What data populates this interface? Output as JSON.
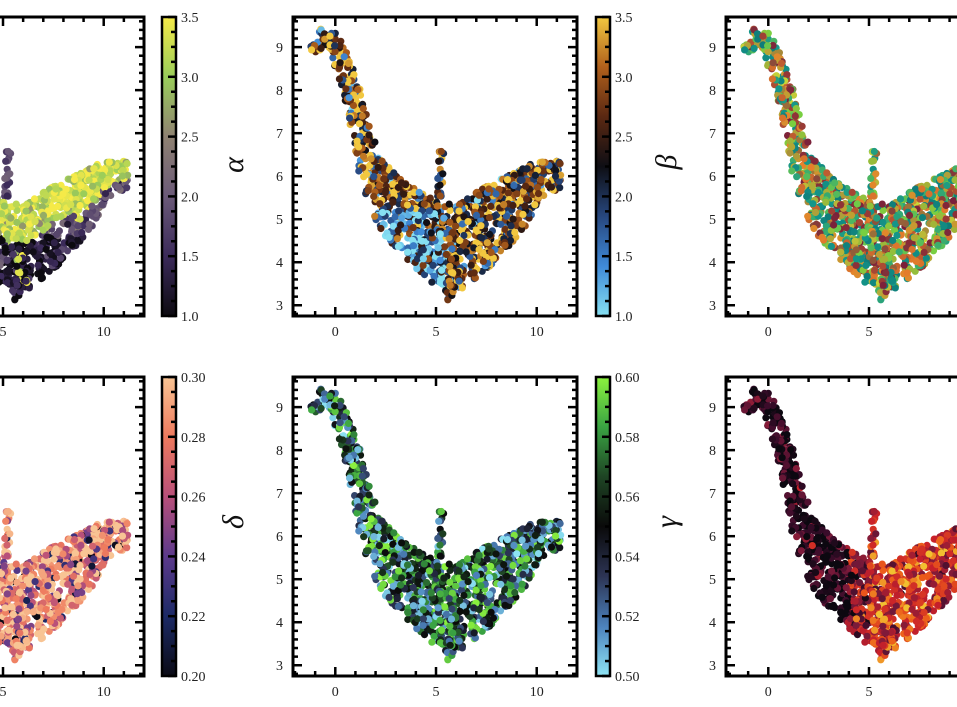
{
  "chart_data": [
    {
      "type": "scatter",
      "panel": "top-left",
      "xlim": [
        -2.1,
        12
      ],
      "ylim": [
        2.75,
        9.7
      ],
      "xticks": [
        "5",
        "10"
      ],
      "yticks": [],
      "colorbar": {
        "label": "α",
        "range": [
          1.0,
          3.5
        ],
        "ticks": [
          "1.0",
          "1.5",
          "2.0",
          "2.5",
          "3.0",
          "3.5"
        ],
        "colors": [
          "#0c0a10",
          "#3b2a5a",
          "#6b5a78",
          "#8f8272",
          "#9acd5a",
          "#f5ea48"
        ]
      }
    },
    {
      "type": "scatter",
      "panel": "top-middle",
      "xlim": [
        -2.1,
        12
      ],
      "ylim": [
        2.75,
        9.7
      ],
      "xticks": [
        "0",
        "5",
        "10"
      ],
      "yticks": [
        "3",
        "4",
        "5",
        "6",
        "7",
        "8",
        "9"
      ],
      "colorbar": {
        "label": "β",
        "range": [
          1.0,
          3.5
        ],
        "ticks": [
          "1.0",
          "1.5",
          "2.0",
          "2.5",
          "3.0",
          "3.5"
        ],
        "colors": [
          "#86e0f2",
          "#3f8ad8",
          "#27477e",
          "#0e0e14",
          "#5a2812",
          "#b0601c",
          "#f2c840"
        ]
      }
    },
    {
      "type": "scatter",
      "panel": "top-right",
      "xlim": [
        -2.1,
        12
      ],
      "ylim": [
        2.75,
        9.7
      ],
      "xticks": [
        "0",
        "5"
      ],
      "yticks": [
        "3",
        "4",
        "5",
        "6",
        "7",
        "8",
        "9"
      ],
      "colors": [
        "#0f7a78",
        "#14968a",
        "#7ad040",
        "#e8822a",
        "#7a1f3a",
        "#c9dc38"
      ]
    },
    {
      "type": "scatter",
      "panel": "bottom-left",
      "xlim": [
        -2.1,
        12
      ],
      "ylim": [
        2.75,
        9.7
      ],
      "xticks": [
        "5",
        "10"
      ],
      "yticks": [],
      "colorbar": {
        "label": "δ",
        "range": [
          0.2,
          0.3
        ],
        "ticks": [
          "0.20",
          "0.22",
          "0.24",
          "0.26",
          "0.28",
          "0.30"
        ],
        "colors": [
          "#0a0a14",
          "#1c2a66",
          "#5c3a8c",
          "#b8507a",
          "#ee7a5e",
          "#f8c494"
        ]
      }
    },
    {
      "type": "scatter",
      "panel": "bottom-middle",
      "xlim": [
        -2.1,
        12
      ],
      "ylim": [
        2.75,
        9.7
      ],
      "xticks": [
        "0",
        "5",
        "10"
      ],
      "yticks": [
        "3",
        "4",
        "5",
        "6",
        "7",
        "8",
        "9"
      ],
      "colorbar": {
        "label": "γ",
        "range": [
          0.5,
          0.6
        ],
        "ticks": [
          "0.50",
          "0.52",
          "0.54",
          "0.56",
          "0.58",
          "0.60"
        ],
        "colors": [
          "#8ee4f4",
          "#4c82bc",
          "#2c3454",
          "#0a0a0a",
          "#1e4424",
          "#3aa443",
          "#8cf23e"
        ]
      }
    },
    {
      "type": "scatter",
      "panel": "bottom-right",
      "xlim": [
        -2.1,
        12
      ],
      "ylim": [
        2.75,
        9.7
      ],
      "xticks": [
        "0",
        "5"
      ],
      "yticks": [
        "3",
        "4",
        "5",
        "6",
        "7",
        "8",
        "9"
      ],
      "colors": [
        "#0c0810",
        "#3a0c2a",
        "#7a1a3a",
        "#c8202a",
        "#ec5a1a",
        "#f2c030"
      ]
    }
  ]
}
